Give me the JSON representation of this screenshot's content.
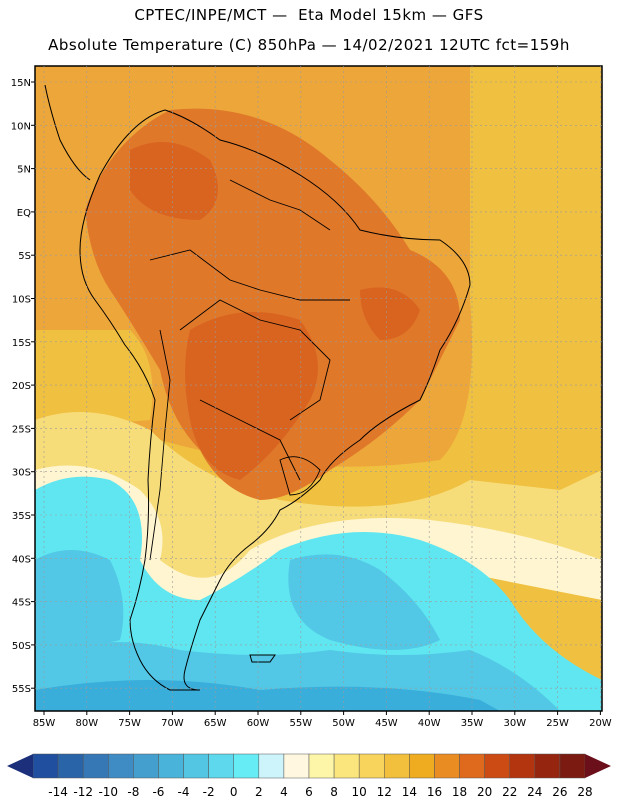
{
  "header": {
    "line1": "CPTEC/INPE/MCT —  Eta Model 15km — GFS",
    "line2": "Absolute Temperature (C) 850hPa — 14/02/2021 12UTC fct=159h"
  },
  "map": {
    "lat_labels": [
      "15N",
      "10N",
      "5N",
      "EQ",
      "5S",
      "10S",
      "15S",
      "20S",
      "25S",
      "30S",
      "35S",
      "40S",
      "45S",
      "50S",
      "55S"
    ],
    "lon_labels": [
      "85W",
      "80W",
      "75W",
      "70W",
      "65W",
      "60W",
      "55W",
      "50W",
      "45W",
      "40W",
      "35W",
      "30W",
      "25W",
      "20W"
    ],
    "gridlines": "dashed",
    "colors": {
      "hot": "#e0782a",
      "very_hot": "#d86420",
      "warm": "#eda63a",
      "mild": "#f0c040",
      "cool": "#f7dd7a",
      "cream": "#fff5d0",
      "ice": "#cdeef8",
      "cyan": "#5fe6f0",
      "light_blue": "#52c8e6",
      "blue": "#3aaedb"
    }
  },
  "colorbar": {
    "labels": [
      "-14",
      "-12",
      "-10",
      "-8",
      "-6",
      "-4",
      "-2",
      "0",
      "2",
      "4",
      "6",
      "8",
      "10",
      "12",
      "14",
      "16",
      "18",
      "20",
      "22",
      "24",
      "26",
      "28"
    ],
    "colors": [
      "#1f4f9e",
      "#2a64a8",
      "#3678b6",
      "#3f8cc4",
      "#449fcf",
      "#4ab3d9",
      "#52c6e3",
      "#5dd8ec",
      "#66ecf4",
      "#cdf4fb",
      "#fff7e0",
      "#fdf6a8",
      "#fbe57d",
      "#f8d45c",
      "#f2c03d",
      "#f0ac20",
      "#e98d22",
      "#df6a1e",
      "#cc4a14",
      "#b33510",
      "#962510",
      "#7a1a10"
    ],
    "low_arrow_color": "#1b2f7a",
    "high_arrow_color": "#6b0f1a"
  }
}
